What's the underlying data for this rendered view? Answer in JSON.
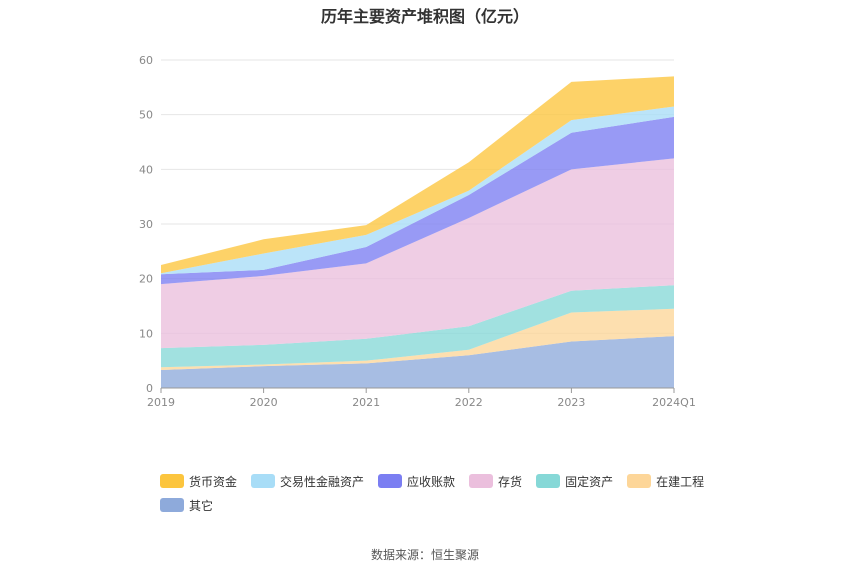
{
  "chart_data": {
    "type": "area",
    "stacked": true,
    "title": "历年主要资产堆积图（亿元）",
    "categories": [
      "2019",
      "2020",
      "2021",
      "2022",
      "2023",
      "2024Q1"
    ],
    "ylim": [
      0,
      60
    ],
    "yticks": [
      0,
      10,
      20,
      30,
      40,
      50,
      60
    ],
    "grid": true,
    "legend_position": "bottom",
    "series": [
      {
        "name": "其它",
        "color": "#8eaadb",
        "values": [
          3.3,
          4.0,
          4.5,
          6.0,
          8.5,
          9.5
        ]
      },
      {
        "name": "在建工程",
        "color": "#fdd699",
        "values": [
          0.5,
          0.3,
          0.5,
          1.0,
          5.3,
          5.0
        ]
      },
      {
        "name": "固定资产",
        "color": "#86d8d7",
        "values": [
          3.5,
          3.6,
          4.0,
          4.3,
          4.0,
          4.3
        ]
      },
      {
        "name": "存货",
        "color": "#ebbfdd",
        "values": [
          11.7,
          12.6,
          13.8,
          19.8,
          22.2,
          23.2
        ]
      },
      {
        "name": "应收账款",
        "color": "#7b7ef2",
        "values": [
          1.8,
          1.1,
          3.0,
          4.2,
          6.7,
          7.6
        ]
      },
      {
        "name": "交易性金融资产",
        "color": "#a8ddf7",
        "values": [
          0.2,
          3.0,
          2.2,
          0.8,
          2.3,
          1.9
        ]
      },
      {
        "name": "货币资金",
        "color": "#fcc53e",
        "values": [
          1.5,
          2.6,
          1.8,
          5.2,
          7.0,
          5.5
        ]
      }
    ],
    "legend_order": [
      "货币资金",
      "交易性金融资产",
      "应收账款",
      "存货",
      "固定资产",
      "在建工程",
      "其它"
    ]
  },
  "source_text": "数据来源：恒生聚源"
}
